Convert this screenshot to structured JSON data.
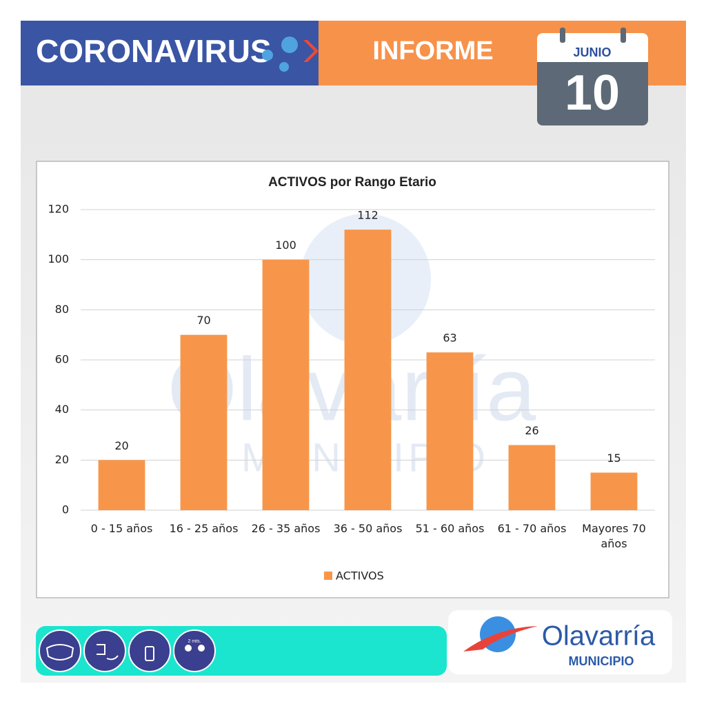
{
  "header": {
    "left": "CORONAVIRUS",
    "center": "INFORME",
    "month": "JUNIO",
    "day": "10"
  },
  "chart_data": {
    "type": "bar",
    "title": "ACTIVOS por Rango Etario",
    "categories": [
      "0 - 15 años",
      "16 - 25 años",
      "26 - 35 años",
      "36 - 50 años",
      "51 - 60 años",
      "61 - 70 años",
      "Mayores 70 años"
    ],
    "series": [
      {
        "name": "ACTIVOS",
        "color": "#f7964a",
        "values": [
          20,
          70,
          100,
          112,
          63,
          26,
          15
        ]
      }
    ],
    "ylim": [
      0,
      120
    ],
    "yticks": [
      0,
      20,
      40,
      60,
      80,
      100,
      120
    ],
    "grid": true,
    "legend": "bottom"
  },
  "footer": {
    "icon_label": "2 mts.",
    "brand": "Olavarría",
    "sub": "MUNICIPIO"
  }
}
